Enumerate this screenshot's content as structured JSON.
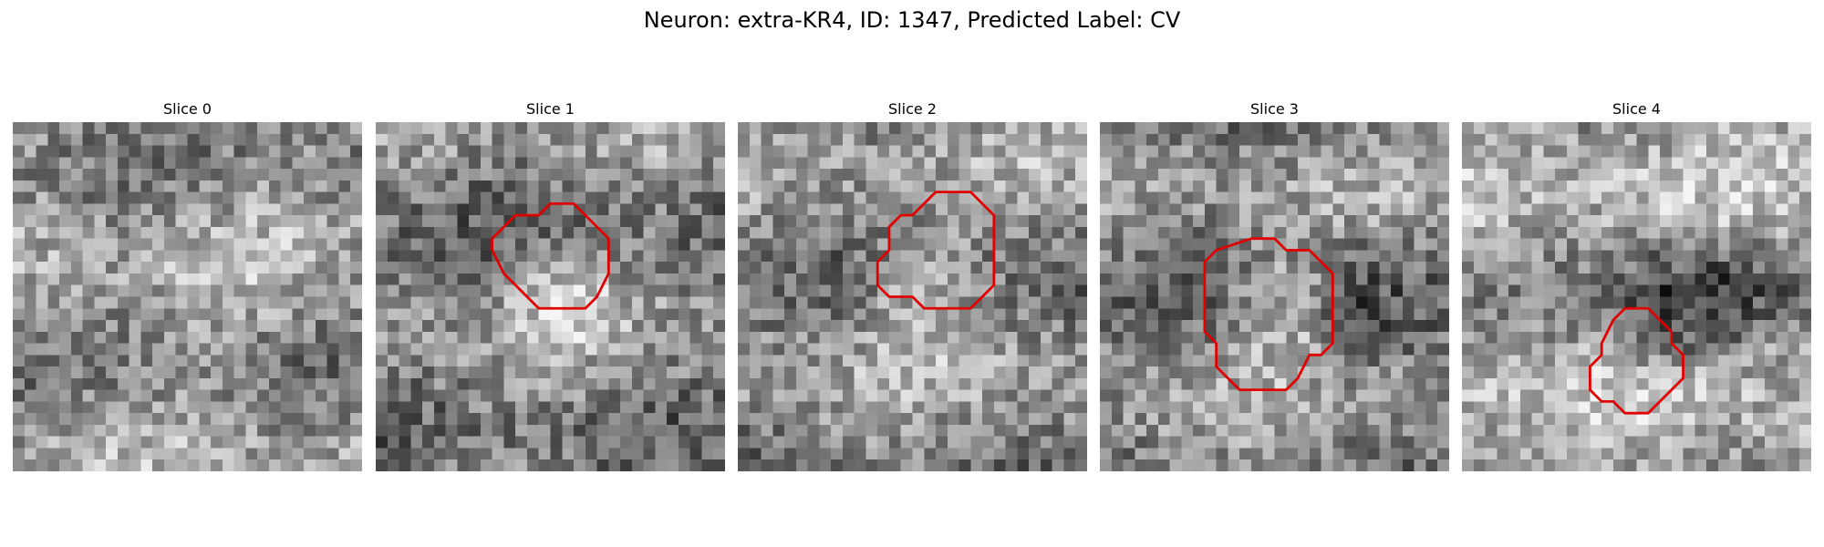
{
  "figure": {
    "title": "Neuron: extra-KR4, ID: 1347, Predicted Label: CV"
  },
  "contour_color": "#e00000",
  "panels": [
    {
      "title": "Slice 0",
      "has_contour": false,
      "blob": "none"
    },
    {
      "title": "Slice 1",
      "has_contour": true,
      "blob": "bright"
    },
    {
      "title": "Slice 2",
      "has_contour": true,
      "blob": "bright"
    },
    {
      "title": "Slice 3",
      "has_contour": true,
      "blob": "bright-with-dark-ring"
    },
    {
      "title": "Slice 4",
      "has_contour": true,
      "blob": "dark"
    }
  ]
}
